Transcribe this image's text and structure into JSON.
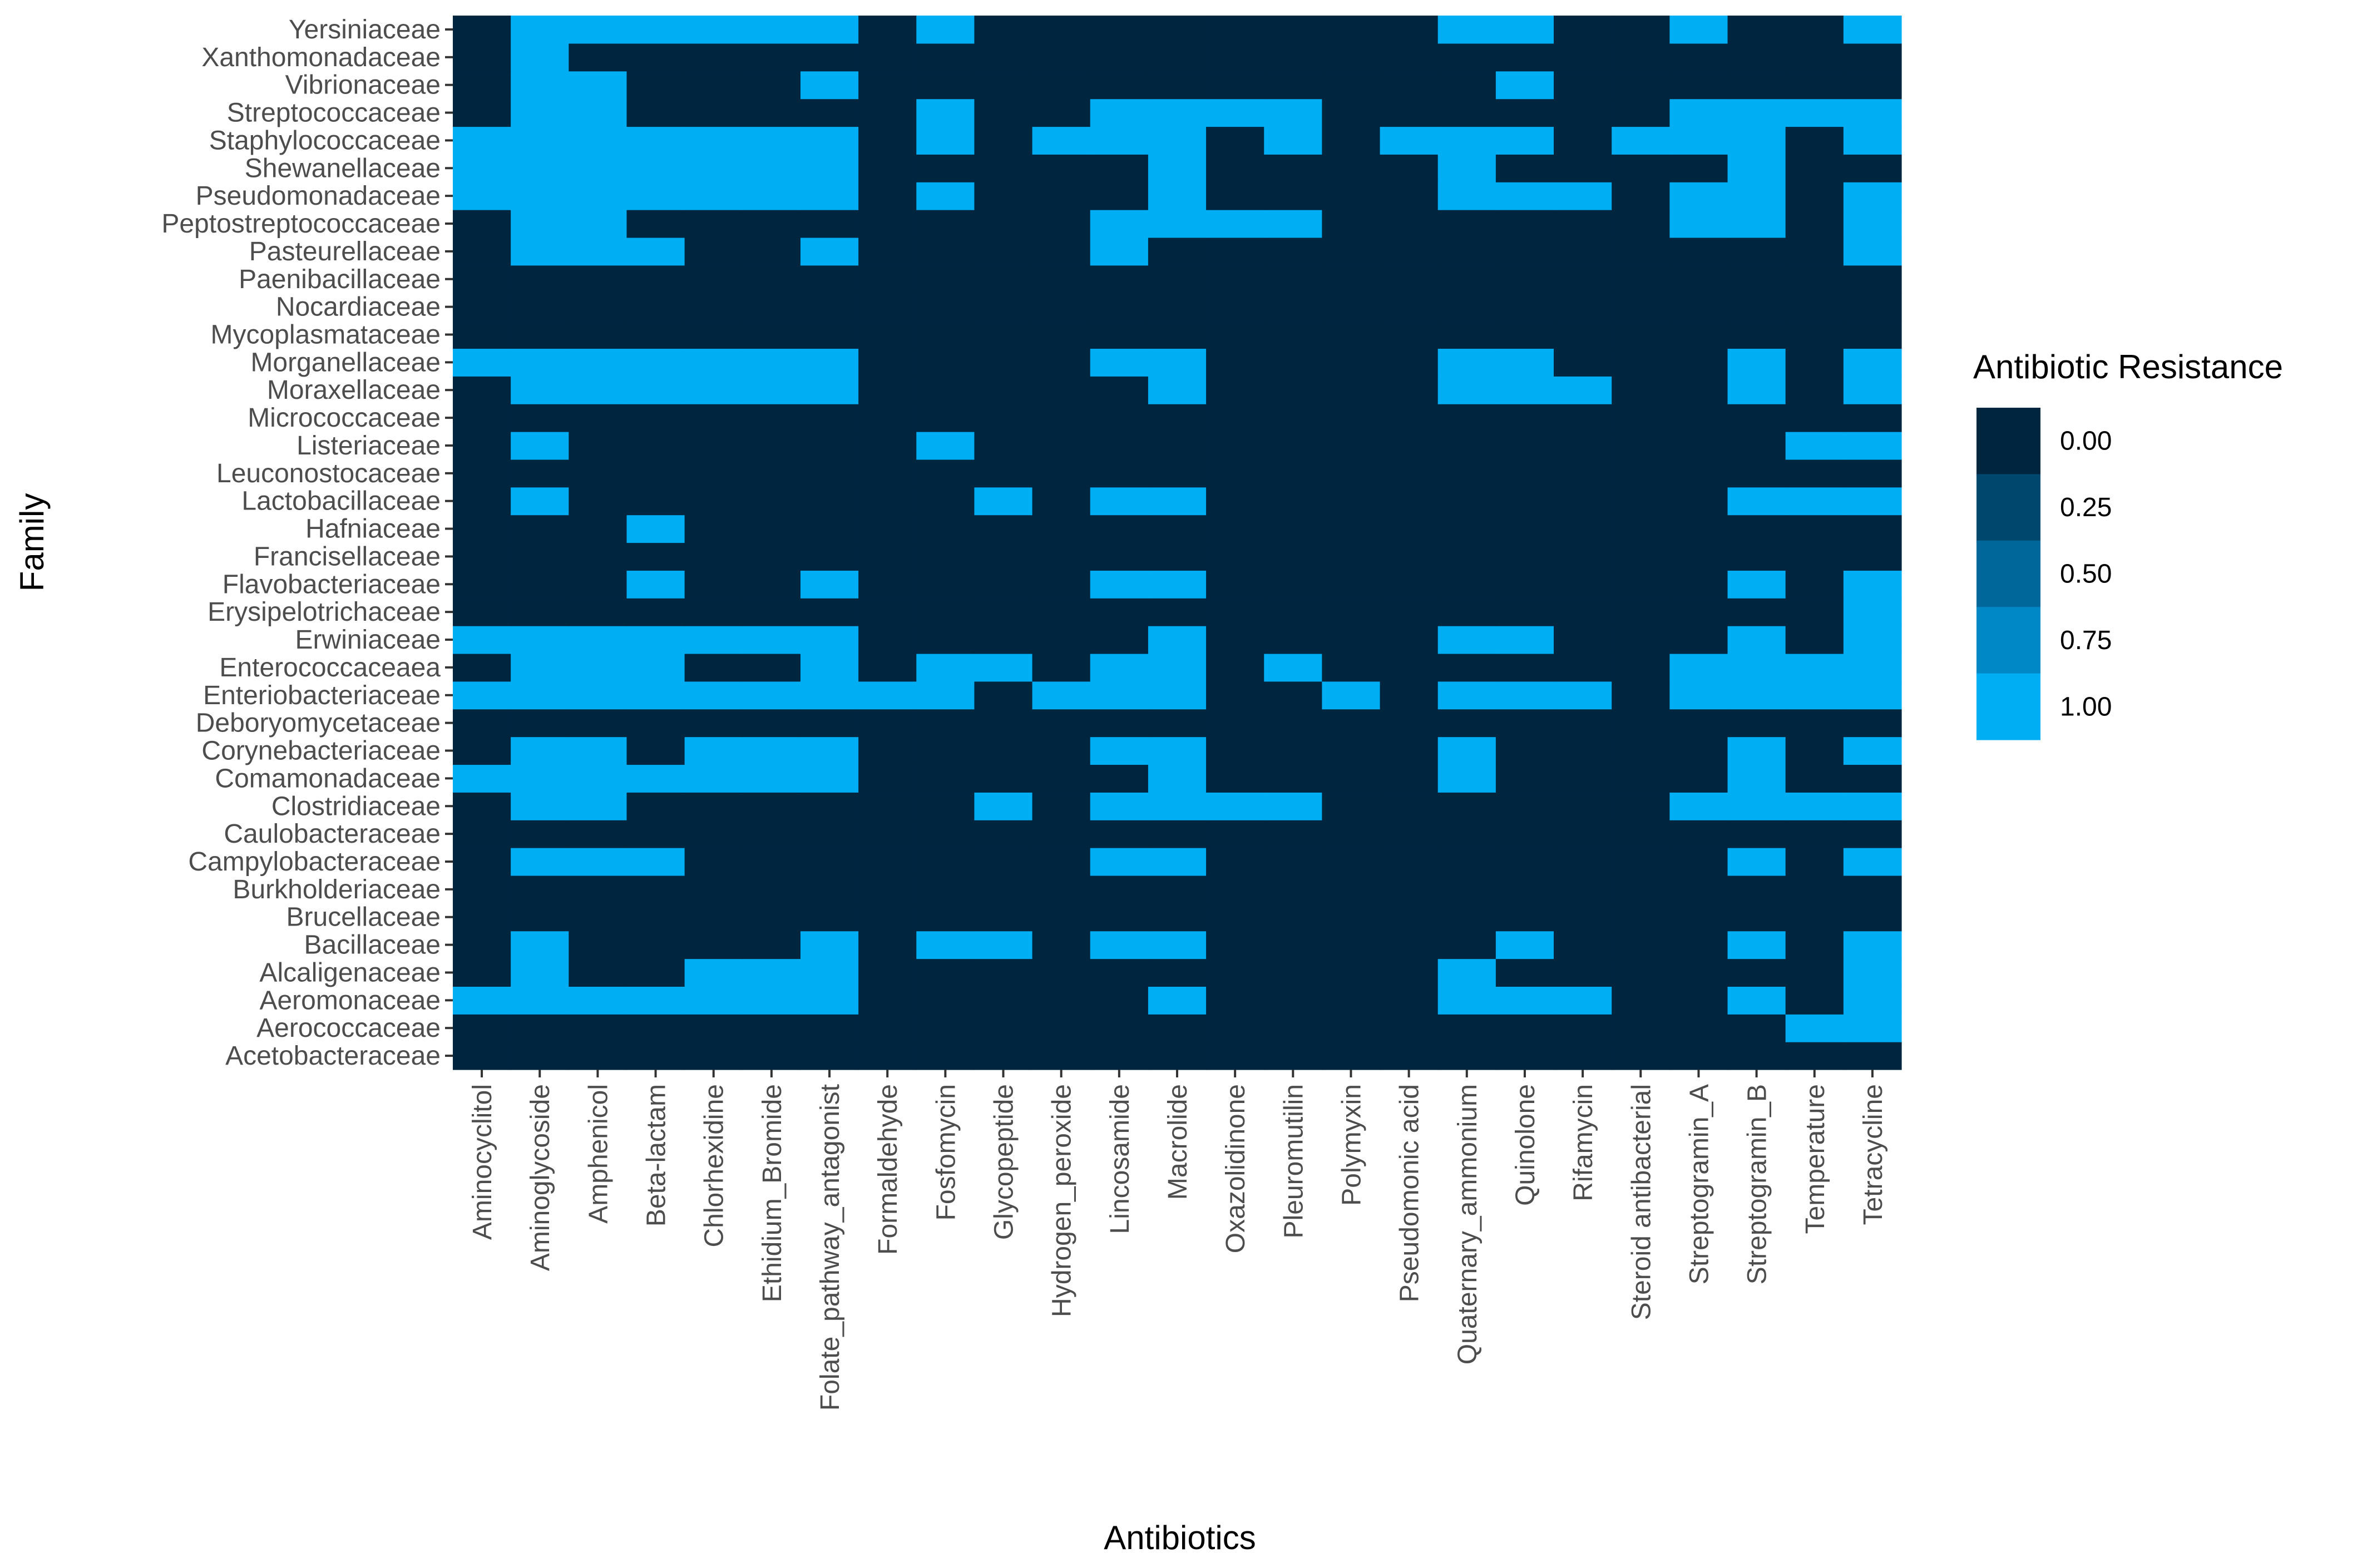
{
  "chart_data": {
    "type": "heatmap",
    "xlabel": "Antibiotics",
    "ylabel": "Family",
    "x_categories": [
      "Aminocyclitol",
      "Aminoglycoside",
      "Amphenicol",
      "Beta-lactam",
      "Chlorhexidine",
      "Ethidium_Bromide",
      "Folate_pathway_antagonist",
      "Formaldehyde",
      "Fosfomycin",
      "Glycopeptide",
      "Hydrogen_peroxide",
      "Lincosamide",
      "Macrolide",
      "Oxazolidinone",
      "Pleuromutilin",
      "Polymyxin",
      "Pseudomonic acid",
      "Quaternary_ammonium",
      "Quinolone",
      "Rifamycin",
      "Steroid antibacterial",
      "Streptogramin_A",
      "Streptogramin_B",
      "Temperature",
      "Tetracycline"
    ],
    "y_categories": [
      "Acetobacteraceae",
      "Aerococcaceae",
      "Aeromonaceae",
      "Alcaligenaceae",
      "Bacillaceae",
      "Brucellaceae",
      "Burkholderiaceae",
      "Campylobacteraceae",
      "Caulobacteraceae",
      "Clostridiaceae",
      "Comamonadaceae",
      "Corynebacteriaceae",
      "Deboryomycetaceae",
      "Enteriobacteriaceae",
      "Enterococcaceaea",
      "Erwiniaceae",
      "Erysipelotrichaceae",
      "Flavobacteriaceae",
      "Francisellaceae",
      "Hafniaceae",
      "Lactobacillaceae",
      "Leuconostocaceae",
      "Listeriaceae",
      "Micrococcaceae",
      "Moraxellaceae",
      "Morganellaceae",
      "Mycoplasmataceae",
      "Nocardiaceae",
      "Paenibacillaceae",
      "Pasteurellaceae",
      "Peptostreptococcaceae",
      "Pseudomonadaceae",
      "Shewanellaceae",
      "Staphylococcaceae",
      "Streptococcaceae",
      "Vibrionaceae",
      "Xanthomonadaceae",
      "Yersiniaceae"
    ],
    "resistance": {
      "Yersiniaceae": [
        0,
        1,
        1,
        1,
        1,
        1,
        1,
        0,
        1,
        0,
        0,
        0,
        0,
        0,
        0,
        0,
        0,
        1,
        1,
        0,
        0,
        1,
        0,
        0,
        1
      ],
      "Xanthomonadaceae": [
        0,
        1,
        0,
        0,
        0,
        0,
        0,
        0,
        0,
        0,
        0,
        0,
        0,
        0,
        0,
        0,
        0,
        0,
        0,
        0,
        0,
        0,
        0,
        0,
        0
      ],
      "Vibrionaceae": [
        0,
        1,
        1,
        0,
        0,
        0,
        1,
        0,
        0,
        0,
        0,
        0,
        0,
        0,
        0,
        0,
        0,
        0,
        1,
        0,
        0,
        0,
        0,
        0,
        0
      ],
      "Streptococcaceae": [
        0,
        1,
        1,
        0,
        0,
        0,
        0,
        0,
        1,
        0,
        0,
        1,
        1,
        1,
        1,
        0,
        0,
        0,
        0,
        0,
        0,
        1,
        1,
        1,
        1
      ],
      "Staphylococcaceae": [
        1,
        1,
        1,
        1,
        1,
        1,
        1,
        0,
        1,
        0,
        1,
        1,
        1,
        0,
        1,
        0,
        1,
        1,
        1,
        0,
        1,
        1,
        1,
        0,
        1
      ],
      "Shewanellaceae": [
        1,
        1,
        1,
        1,
        1,
        1,
        1,
        0,
        0,
        0,
        0,
        0,
        1,
        0,
        0,
        0,
        0,
        1,
        0,
        0,
        0,
        0,
        1,
        0,
        0
      ],
      "Pseudomonadaceae": [
        1,
        1,
        1,
        1,
        1,
        1,
        1,
        0,
        1,
        0,
        0,
        0,
        1,
        0,
        0,
        0,
        0,
        1,
        1,
        1,
        0,
        1,
        1,
        0,
        1
      ],
      "Peptostreptococcaceae": [
        0,
        1,
        1,
        0,
        0,
        0,
        0,
        0,
        0,
        0,
        0,
        1,
        1,
        1,
        1,
        0,
        0,
        0,
        0,
        0,
        0,
        1,
        1,
        0,
        1
      ],
      "Pasteurellaceae": [
        0,
        1,
        1,
        1,
        0,
        0,
        1,
        0,
        0,
        0,
        0,
        1,
        0,
        0,
        0,
        0,
        0,
        0,
        0,
        0,
        0,
        0,
        0,
        0,
        1
      ],
      "Paenibacillaceae": [
        0,
        0,
        0,
        0,
        0,
        0,
        0,
        0,
        0,
        0,
        0,
        0,
        0,
        0,
        0,
        0,
        0,
        0,
        0,
        0,
        0,
        0,
        0,
        0,
        0
      ],
      "Nocardiaceae": [
        0,
        0,
        0,
        0,
        0,
        0,
        0,
        0,
        0,
        0,
        0,
        0,
        0,
        0,
        0,
        0,
        0,
        0,
        0,
        0,
        0,
        0,
        0,
        0,
        0
      ],
      "Mycoplasmataceae": [
        0,
        0,
        0,
        0,
        0,
        0,
        0,
        0,
        0,
        0,
        0,
        0,
        0,
        0,
        0,
        0,
        0,
        0,
        0,
        0,
        0,
        0,
        0,
        0,
        0
      ],
      "Morganellaceae": [
        1,
        1,
        1,
        1,
        1,
        1,
        1,
        0,
        0,
        0,
        0,
        1,
        1,
        0,
        0,
        0,
        0,
        1,
        1,
        0,
        0,
        0,
        1,
        0,
        1
      ],
      "Moraxellaceae": [
        0,
        1,
        1,
        1,
        1,
        1,
        1,
        0,
        0,
        0,
        0,
        0,
        1,
        0,
        0,
        0,
        0,
        1,
        1,
        1,
        0,
        0,
        1,
        0,
        1
      ],
      "Micrococcaceae": [
        0,
        0,
        0,
        0,
        0,
        0,
        0,
        0,
        0,
        0,
        0,
        0,
        0,
        0,
        0,
        0,
        0,
        0,
        0,
        0,
        0,
        0,
        0,
        0,
        0
      ],
      "Listeriaceae": [
        0,
        1,
        0,
        0,
        0,
        0,
        0,
        0,
        1,
        0,
        0,
        0,
        0,
        0,
        0,
        0,
        0,
        0,
        0,
        0,
        0,
        0,
        0,
        1,
        1
      ],
      "Leuconostocaceae": [
        0,
        0,
        0,
        0,
        0,
        0,
        0,
        0,
        0,
        0,
        0,
        0,
        0,
        0,
        0,
        0,
        0,
        0,
        0,
        0,
        0,
        0,
        0,
        0,
        0
      ],
      "Lactobacillaceae": [
        0,
        1,
        0,
        0,
        0,
        0,
        0,
        0,
        0,
        1,
        0,
        1,
        1,
        0,
        0,
        0,
        0,
        0,
        0,
        0,
        0,
        0,
        1,
        1,
        1
      ],
      "Hafniaceae": [
        0,
        0,
        0,
        1,
        0,
        0,
        0,
        0,
        0,
        0,
        0,
        0,
        0,
        0,
        0,
        0,
        0,
        0,
        0,
        0,
        0,
        0,
        0,
        0,
        0
      ],
      "Francisellaceae": [
        0,
        0,
        0,
        0,
        0,
        0,
        0,
        0,
        0,
        0,
        0,
        0,
        0,
        0,
        0,
        0,
        0,
        0,
        0,
        0,
        0,
        0,
        0,
        0,
        0
      ],
      "Flavobacteriaceae": [
        0,
        0,
        0,
        1,
        0,
        0,
        1,
        0,
        0,
        0,
        0,
        1,
        1,
        0,
        0,
        0,
        0,
        0,
        0,
        0,
        0,
        0,
        1,
        0,
        1
      ],
      "Erysipelotrichaceae": [
        0,
        0,
        0,
        0,
        0,
        0,
        0,
        0,
        0,
        0,
        0,
        0,
        0,
        0,
        0,
        0,
        0,
        0,
        0,
        0,
        0,
        0,
        0,
        0,
        1
      ],
      "Erwiniaceae": [
        1,
        1,
        1,
        1,
        1,
        1,
        1,
        0,
        0,
        0,
        0,
        0,
        1,
        0,
        0,
        0,
        0,
        1,
        1,
        0,
        0,
        0,
        1,
        0,
        1
      ],
      "Enterococcaceaea": [
        0,
        1,
        1,
        1,
        0,
        0,
        1,
        0,
        1,
        1,
        0,
        1,
        1,
        0,
        1,
        0,
        0,
        0,
        0,
        0,
        0,
        1,
        1,
        1,
        1
      ],
      "Enteriobacteriaceae": [
        1,
        1,
        1,
        1,
        1,
        1,
        1,
        1,
        1,
        0,
        1,
        1,
        1,
        0,
        0,
        1,
        0,
        1,
        1,
        1,
        0,
        1,
        1,
        1,
        1
      ],
      "Deboryomycetaceae": [
        0,
        0,
        0,
        0,
        0,
        0,
        0,
        0,
        0,
        0,
        0,
        0,
        0,
        0,
        0,
        0,
        0,
        0,
        0,
        0,
        0,
        0,
        0,
        0,
        0
      ],
      "Corynebacteriaceae": [
        0,
        1,
        1,
        0,
        1,
        1,
        1,
        0,
        0,
        0,
        0,
        1,
        1,
        0,
        0,
        0,
        0,
        1,
        0,
        0,
        0,
        0,
        1,
        0,
        1
      ],
      "Comamonadaceae": [
        1,
        1,
        1,
        1,
        1,
        1,
        1,
        0,
        0,
        0,
        0,
        0,
        1,
        0,
        0,
        0,
        0,
        1,
        0,
        0,
        0,
        0,
        1,
        0,
        0
      ],
      "Clostridiaceae": [
        0,
        1,
        1,
        0,
        0,
        0,
        0,
        0,
        0,
        1,
        0,
        1,
        1,
        1,
        1,
        0,
        0,
        0,
        0,
        0,
        0,
        1,
        1,
        1,
        1
      ],
      "Caulobacteraceae": [
        0,
        0,
        0,
        0,
        0,
        0,
        0,
        0,
        0,
        0,
        0,
        0,
        0,
        0,
        0,
        0,
        0,
        0,
        0,
        0,
        0,
        0,
        0,
        0,
        0
      ],
      "Campylobacteraceae": [
        0,
        1,
        1,
        1,
        0,
        0,
        0,
        0,
        0,
        0,
        0,
        1,
        1,
        0,
        0,
        0,
        0,
        0,
        0,
        0,
        0,
        0,
        1,
        0,
        1
      ],
      "Burkholderiaceae": [
        0,
        0,
        0,
        0,
        0,
        0,
        0,
        0,
        0,
        0,
        0,
        0,
        0,
        0,
        0,
        0,
        0,
        0,
        0,
        0,
        0,
        0,
        0,
        0,
        0
      ],
      "Brucellaceae": [
        0,
        0,
        0,
        0,
        0,
        0,
        0,
        0,
        0,
        0,
        0,
        0,
        0,
        0,
        0,
        0,
        0,
        0,
        0,
        0,
        0,
        0,
        0,
        0,
        0
      ],
      "Bacillaceae": [
        0,
        1,
        0,
        0,
        0,
        0,
        1,
        0,
        1,
        1,
        0,
        1,
        1,
        0,
        0,
        0,
        0,
        0,
        1,
        0,
        0,
        0,
        1,
        0,
        1
      ],
      "Alcaligenaceae": [
        0,
        1,
        0,
        0,
        1,
        1,
        1,
        0,
        0,
        0,
        0,
        0,
        0,
        0,
        0,
        0,
        0,
        1,
        0,
        0,
        0,
        0,
        0,
        0,
        1
      ],
      "Aeromonaceae": [
        1,
        1,
        1,
        1,
        1,
        1,
        1,
        0,
        0,
        0,
        0,
        0,
        1,
        0,
        0,
        0,
        0,
        1,
        1,
        1,
        0,
        0,
        1,
        0,
        1
      ],
      "Aerococcaceae": [
        0,
        0,
        0,
        0,
        0,
        0,
        0,
        0,
        0,
        0,
        0,
        0,
        0,
        0,
        0,
        0,
        0,
        0,
        0,
        0,
        0,
        0,
        0,
        1,
        1
      ],
      "Acetobacteraceae": [
        0,
        0,
        0,
        0,
        0,
        0,
        0,
        0,
        0,
        0,
        0,
        0,
        0,
        0,
        0,
        0,
        0,
        0,
        0,
        0,
        0,
        0,
        0,
        0,
        0
      ]
    },
    "legend": {
      "title": "Antibiotic Resistance",
      "breaks": [
        "0.00",
        "0.25",
        "0.50",
        "0.75",
        "1.00"
      ],
      "colors": [
        "#00253F",
        "#00476E",
        "#00679A",
        "#0087C6",
        "#00AEF3"
      ]
    },
    "value_range": [
      0,
      1
    ]
  }
}
